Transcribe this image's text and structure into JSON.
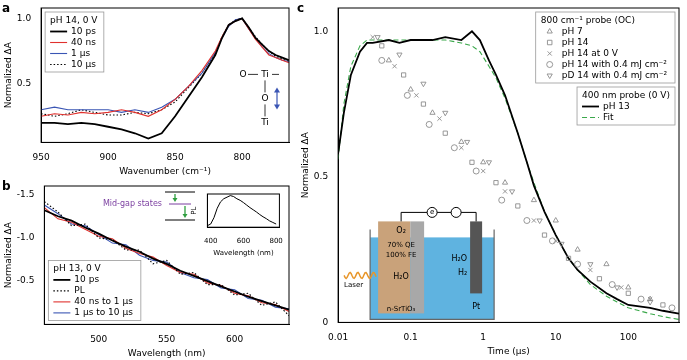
{
  "chart_data": [
    {
      "panel": "a",
      "type": "line",
      "x": [
        950,
        940,
        930,
        920,
        910,
        900,
        890,
        880,
        870,
        860,
        850,
        840,
        830,
        820,
        815,
        810,
        805,
        800,
        795,
        790,
        785,
        780,
        775,
        770,
        765
      ],
      "series": [
        {
          "name": "10 ps",
          "group": "pH 14, 0 V",
          "color": "#000000",
          "line_style": "solid",
          "values": [
            0.2,
            0.2,
            0.19,
            0.2,
            0.19,
            0.17,
            0.15,
            0.12,
            0.08,
            0.12,
            0.25,
            0.4,
            0.55,
            0.72,
            0.85,
            0.95,
            0.98,
            1.0,
            0.93,
            0.85,
            0.8,
            0.75,
            0.72,
            0.7,
            0.68
          ]
        },
        {
          "name": "40 ns",
          "group": "pH 14, 0 V",
          "color": "#e0312d",
          "line_style": "solid",
          "values": [
            0.25,
            0.27,
            0.26,
            0.28,
            0.27,
            0.28,
            0.3,
            0.28,
            0.25,
            0.3,
            0.38,
            0.48,
            0.6,
            0.75,
            0.86,
            0.95,
            0.98,
            1.0,
            0.92,
            0.84,
            0.78,
            0.72,
            0.7,
            0.68,
            0.66
          ]
        },
        {
          "name": "1 μs",
          "group": "pH 14, 0 V",
          "color": "#3a55b4",
          "line_style": "solid",
          "values": [
            0.3,
            0.32,
            0.3,
            0.3,
            0.3,
            0.3,
            0.28,
            0.3,
            0.28,
            0.32,
            0.38,
            0.48,
            0.58,
            0.74,
            0.85,
            0.94,
            0.99,
            1.0,
            0.92,
            0.85,
            0.78,
            0.73,
            0.7,
            0.68,
            0.67
          ]
        },
        {
          "name": "10 μs",
          "group": "pH 14, 0 V",
          "color": "#000000",
          "line_style": "dotted",
          "values": [
            0.27,
            0.25,
            0.27,
            0.3,
            0.28,
            0.26,
            0.26,
            0.28,
            0.27,
            0.3,
            0.36,
            0.47,
            0.58,
            0.73,
            0.86,
            0.95,
            0.99,
            1.0,
            0.93,
            0.86,
            0.8,
            0.75,
            0.71,
            0.69,
            0.67
          ]
        }
      ],
      "xlim": [
        950,
        765
      ],
      "xticks": [
        950,
        900,
        850,
        800
      ],
      "ylim": [
        0.05,
        1.08
      ],
      "yticks": [
        0.5,
        {
          "value": 1,
          "label": "1.0"
        }
      ],
      "x_label": "Wavenumber (cm⁻¹)",
      "y_label": "Normalized ΔA",
      "legend": "upper left",
      "grid": false,
      "annotations": [
        "O",
        "Ti",
        "O",
        "Ti"
      ]
    },
    {
      "panel": "b",
      "type": "line",
      "x": [
        460,
        470,
        480,
        490,
        500,
        510,
        520,
        530,
        540,
        550,
        560,
        570,
        580,
        590,
        600,
        610,
        620,
        630,
        640
      ],
      "series": [
        {
          "name": "10 ps",
          "group": "pH 13, 0 V",
          "color": "#000000",
          "line_style": "solid",
          "values": [
            -1.32,
            -1.25,
            -1.2,
            -1.12,
            -1.05,
            -0.97,
            -0.9,
            -0.84,
            -0.76,
            -0.7,
            -0.62,
            -0.56,
            -0.5,
            -0.44,
            -0.38,
            -0.32,
            -0.27,
            -0.22,
            -0.17
          ]
        },
        {
          "name": "PL",
          "group": "pH 13, 0 V",
          "color": "#000000",
          "line_style": "dotted",
          "values": [
            -1.42,
            -1.3,
            -1.14,
            -1.16,
            -1.0,
            -0.98,
            -0.86,
            -0.86,
            -0.7,
            -0.74,
            -0.58,
            -0.6,
            -0.46,
            -0.46,
            -0.34,
            -0.36,
            -0.22,
            -0.26,
            -0.1
          ]
        },
        {
          "name": "40 ns to 1 μs",
          "group": "pH 13, 0 V",
          "color": "#e0312d",
          "line_style": "solid",
          "values": [
            -1.35,
            -1.22,
            -1.18,
            -1.1,
            -1.02,
            -0.99,
            -0.88,
            -0.82,
            -0.78,
            -0.68,
            -0.6,
            -0.58,
            -0.48,
            -0.45,
            -0.36,
            -0.33,
            -0.25,
            -0.23,
            -0.15
          ]
        },
        {
          "name": "1 μs to 10 μs",
          "group": "pH 13, 0 V",
          "color": "#3a55b4",
          "line_style": "solid",
          "values": [
            -1.38,
            -1.28,
            -1.16,
            -1.14,
            -1.04,
            -0.94,
            -0.92,
            -0.8,
            -0.74,
            -0.72,
            -0.6,
            -0.54,
            -0.52,
            -0.42,
            -0.4,
            -0.3,
            -0.28,
            -0.2,
            -0.18
          ]
        }
      ],
      "xlim": [
        460,
        640
      ],
      "xticks": [
        500,
        550,
        600
      ],
      "ylim": [
        0,
        -1.6
      ],
      "yticks": [
        -1.5,
        {
          "value": -1,
          "label": "-1.0"
        },
        -0.5
      ],
      "x_label": "Wavelength (nm)",
      "y_label": "Normalized ΔA",
      "legend": "lower left",
      "grid": false,
      "annotations": [
        "Mid-gap states"
      ],
      "inset": {
        "type": "line",
        "x": [
          380,
          400,
          420,
          440,
          460,
          480,
          500,
          520,
          540,
          560,
          580,
          600,
          620,
          640,
          660,
          680,
          700,
          720,
          740,
          760,
          780,
          800
        ],
        "values": [
          0.05,
          0.1,
          0.3,
          0.6,
          0.8,
          0.9,
          0.95,
          1.0,
          0.97,
          0.9,
          0.85,
          0.78,
          0.7,
          0.62,
          0.55,
          0.48,
          0.4,
          0.33,
          0.27,
          0.2,
          0.15,
          0.1
        ],
        "color": "#000000",
        "xlim": [
          380,
          820
        ],
        "xticks": [
          400,
          600,
          800
        ],
        "ylim": [
          0,
          1.05
        ],
        "tick_labels": "x",
        "x_label": "Wavelength (nm)",
        "y_label": "PL",
        "grid": false
      }
    },
    {
      "panel": "c",
      "type": "scatter",
      "log": "x",
      "series": [
        {
          "name": "pH 7",
          "group": "800 cm⁻¹ probe (OC)",
          "type": "scatter",
          "marker": "triangle",
          "color": "#8c8c8c",
          "x": [
            0.05,
            0.1,
            0.2,
            0.5,
            1,
            2,
            5,
            10,
            20,
            50,
            100,
            200
          ],
          "values": [
            0.9,
            0.8,
            0.72,
            0.62,
            0.55,
            0.48,
            0.42,
            0.35,
            0.25,
            0.2,
            0.12,
            0.08
          ]
        },
        {
          "name": "pH 14",
          "group": "800 cm⁻¹ probe (OC)",
          "type": "scatter",
          "marker": "square",
          "color": "#8c8c8c",
          "x": [
            0.04,
            0.08,
            0.15,
            0.3,
            0.7,
            1.5,
            3,
            7,
            15,
            40,
            100,
            300
          ],
          "values": [
            0.95,
            0.85,
            0.75,
            0.65,
            0.55,
            0.48,
            0.4,
            0.3,
            0.22,
            0.15,
            0.1,
            0.06
          ]
        },
        {
          "name": "pH 14 at 0 V",
          "group": "800 cm⁻¹ probe (OC)",
          "type": "scatter",
          "marker": "cross",
          "color": "#8c8c8c",
          "x": [
            0.03,
            0.06,
            0.12,
            0.25,
            0.5,
            1,
            2,
            5,
            10,
            30,
            80,
            200
          ],
          "values": [
            0.98,
            0.88,
            0.78,
            0.7,
            0.6,
            0.52,
            0.45,
            0.35,
            0.28,
            0.18,
            0.12,
            0.08
          ]
        },
        {
          "name": "pH 14 with 0.4 mJ cm⁻²",
          "group": "800 cm⁻¹ probe (OC)",
          "type": "scatter",
          "marker": "circle",
          "color": "#8c8c8c",
          "x": [
            0.04,
            0.09,
            0.18,
            0.4,
            0.8,
            1.8,
            4,
            9,
            20,
            60,
            150,
            400
          ],
          "values": [
            0.9,
            0.78,
            0.68,
            0.6,
            0.52,
            0.42,
            0.35,
            0.28,
            0.2,
            0.13,
            0.08,
            0.05
          ]
        },
        {
          "name": "pD 14 with 0.4 mJ cm⁻²",
          "group": "800 cm⁻¹ probe (OC)",
          "type": "scatter",
          "marker": "triangle-down",
          "color": "#8c8c8c",
          "x": [
            0.035,
            0.07,
            0.15,
            0.3,
            0.6,
            1.2,
            2.5,
            6,
            12,
            30,
            70,
            200
          ],
          "values": [
            0.98,
            0.92,
            0.82,
            0.72,
            0.62,
            0.55,
            0.45,
            0.35,
            0.27,
            0.2,
            0.12,
            0.07
          ]
        },
        {
          "name": "pH 13",
          "group": "400 nm probe (0 V)",
          "type": "line",
          "line_style": "solid",
          "color": "#000000",
          "x": [
            0.01,
            0.012,
            0.015,
            0.02,
            0.025,
            0.03,
            0.05,
            0.07,
            0.1,
            0.2,
            0.3,
            0.5,
            0.7,
            0.9,
            1.2,
            1.5,
            2,
            3,
            4,
            5,
            7,
            10,
            15,
            20,
            30,
            50,
            70,
            100,
            200,
            300,
            500
          ],
          "values": [
            0.58,
            0.72,
            0.85,
            0.93,
            0.96,
            0.96,
            0.97,
            0.96,
            0.97,
            0.97,
            0.98,
            0.97,
            1.0,
            0.97,
            0.9,
            0.85,
            0.78,
            0.65,
            0.55,
            0.47,
            0.38,
            0.3,
            0.22,
            0.18,
            0.14,
            0.1,
            0.08,
            0.06,
            0.05,
            0.04,
            0.03
          ]
        },
        {
          "name": "Fit",
          "group": "400 nm probe (0 V)",
          "type": "line",
          "line_style": "dashed",
          "color": "#3aa84a",
          "x": [
            0.01,
            0.012,
            0.015,
            0.02,
            0.025,
            0.03,
            0.05,
            0.07,
            0.1,
            0.2,
            0.3,
            0.5,
            0.7,
            0.9,
            1.2,
            1.5,
            2,
            3,
            4,
            5,
            7,
            10,
            15,
            20,
            30,
            50,
            70,
            100,
            200,
            300,
            500
          ],
          "values": [
            0.56,
            0.75,
            0.88,
            0.95,
            0.97,
            0.97,
            0.97,
            0.97,
            0.97,
            0.97,
            0.97,
            0.96,
            0.95,
            0.93,
            0.88,
            0.84,
            0.77,
            0.65,
            0.55,
            0.48,
            0.38,
            0.3,
            0.22,
            0.18,
            0.13,
            0.09,
            0.07,
            0.05,
            0.03,
            0.02,
            0.01
          ]
        }
      ],
      "xlim": [
        0.01,
        500
      ],
      "xticks": [
        0.01,
        0.1,
        1,
        10,
        100
      ],
      "ylim": [
        0,
        1.08
      ],
      "yticks": [
        0,
        0.5,
        {
          "value": 1,
          "label": "1.0"
        }
      ],
      "x_label": "Time (μs)",
      "y_label": "Normalized ΔA",
      "legend": "upper right",
      "grid": false,
      "annotations": [
        "Laser",
        "O₂",
        "H₂O",
        "70% QE",
        "100% FE",
        "n-SrTiO₃",
        "Pt",
        "H₂O",
        "H₂",
        "e"
      ]
    }
  ]
}
